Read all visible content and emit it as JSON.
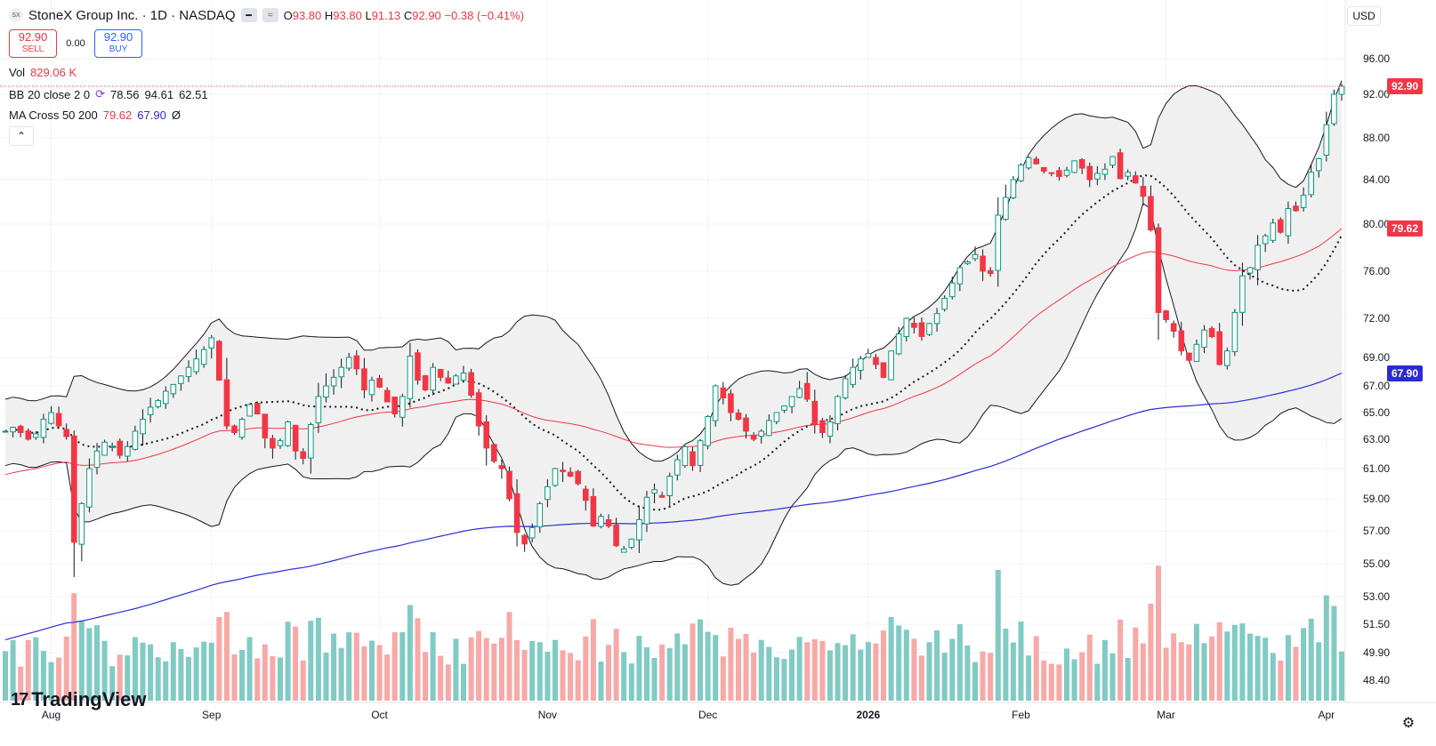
{
  "header": {
    "logo_text": "SX",
    "title": "StoneX Group Inc. · 1D · NASDAQ",
    "open_label": "O",
    "open": "93.80",
    "high_label": "H",
    "high": "93.80",
    "low_label": "L",
    "low": "91.13",
    "close_label": "C",
    "close": "92.90",
    "change": "−0.38 (−0.41%)"
  },
  "trade": {
    "sell_price": "92.90",
    "sell_label": "SELL",
    "spread": "0.00",
    "buy_price": "92.90",
    "buy_label": "BUY"
  },
  "indicators": {
    "vol_name": "Vol",
    "vol_value": "829.06 K",
    "bb_name": "BB 20 close 2 0",
    "bb_basis": "78.56",
    "bb_upper": "94.61",
    "bb_lower": "62.51",
    "ma_name": "MA Cross 50 200",
    "ma_fast": "79.62",
    "ma_slow": "67.90",
    "ma_flag": "Ø"
  },
  "currency": "USD",
  "branding": "TradingView",
  "colors": {
    "up": "#089981",
    "down": "#f23645",
    "vol_up": "#80cbc4",
    "vol_down": "#f7a9a7",
    "ma50": "#f23645",
    "ma200": "#2b2bd4",
    "bb": "#131722",
    "bb_fill": "#f0f0f0",
    "price_line": "#f23645"
  },
  "chart_data": {
    "type": "candlestick",
    "ylim": [
      48.4,
      96.0
    ],
    "y_ticks": [
      "96.00",
      "92.00",
      "88.00",
      "84.00",
      "80.00",
      "76.00",
      "72.00",
      "69.00",
      "67.00",
      "65.00",
      "63.00",
      "61.00",
      "59.00",
      "57.00",
      "55.00",
      "53.00",
      "51.50",
      "49.90",
      "48.40"
    ],
    "x_ticks": [
      {
        "label": "Aug",
        "index": 6
      },
      {
        "label": "Sep",
        "index": 27
      },
      {
        "label": "Oct",
        "index": 49
      },
      {
        "label": "Nov",
        "index": 71
      },
      {
        "label": "Dec",
        "index": 92
      },
      {
        "label": "2026",
        "index": 113
      },
      {
        "label": "Feb",
        "index": 133
      },
      {
        "label": "Mar",
        "index": 152
      },
      {
        "label": "Apr",
        "index": 173
      }
    ],
    "last_price": "92.90",
    "ma50_last": "79.62",
    "ma200_last": "67.90",
    "closes": [
      63.6,
      63.9,
      63.5,
      63.0,
      63.4,
      64.5,
      65.0,
      64.0,
      63.2,
      56.3,
      58.7,
      61.0,
      62.2,
      62.8,
      62.5,
      61.9,
      62.5,
      63.6,
      64.5,
      65.4,
      65.9,
      66.6,
      67.1,
      67.7,
      68.3,
      68.9,
      69.6,
      70.5,
      67.4,
      64.0,
      63.5,
      64.5,
      65.6,
      64.9,
      63.1,
      62.4,
      62.9,
      64.3,
      62.2,
      61.7,
      64.1,
      66.2,
      67.0,
      67.6,
      68.3,
      69.0,
      68.2,
      66.7,
      67.4,
      66.9,
      65.8,
      64.9,
      66.2,
      69.1,
      67.4,
      66.7,
      68.3,
      67.6,
      67.2,
      67.7,
      67.9,
      66.3,
      64.0,
      62.4,
      61.5,
      61.0,
      59.0,
      56.9,
      56.2,
      57.2,
      58.7,
      59.8,
      61.0,
      60.8,
      60.5,
      60.0,
      58.9,
      57.3,
      57.9,
      57.3,
      56.1,
      55.9,
      56.5,
      57.7,
      59.1,
      59.6,
      59.1,
      60.5,
      61.6,
      62.5,
      61.2,
      62.9,
      64.7,
      67.0,
      66.1,
      65.0,
      64.5,
      63.6,
      63.0,
      63.6,
      64.4,
      65.0,
      65.5,
      66.2,
      66.8,
      66.0,
      64.1,
      63.5,
      64.3,
      66.2,
      67.5,
      68.3,
      68.9,
      69.3,
      68.5,
      67.6,
      69.5,
      70.8,
      72.0,
      71.3,
      70.6,
      71.6,
      72.4,
      73.7,
      75.0,
      76.3,
      76.8,
      77.4,
      76.0,
      75.8,
      80.8,
      82.4,
      84.0,
      85.4,
      86.1,
      85.5,
      84.8,
      84.6,
      84.3,
      84.9,
      85.8,
      85.1,
      84.0,
      84.6,
      85.0,
      86.2,
      84.1,
      84.7,
      83.7,
      82.5,
      79.5,
      72.5,
      71.9,
      71.0,
      69.5,
      68.8,
      70.0,
      71.1,
      70.6,
      68.5,
      69.5,
      72.5,
      75.6,
      76.3,
      78.2,
      79.0,
      80.1,
      79.3,
      81.4,
      81.2,
      82.6,
      84.7,
      86.0,
      89.2,
      92.0,
      92.9
    ]
  }
}
